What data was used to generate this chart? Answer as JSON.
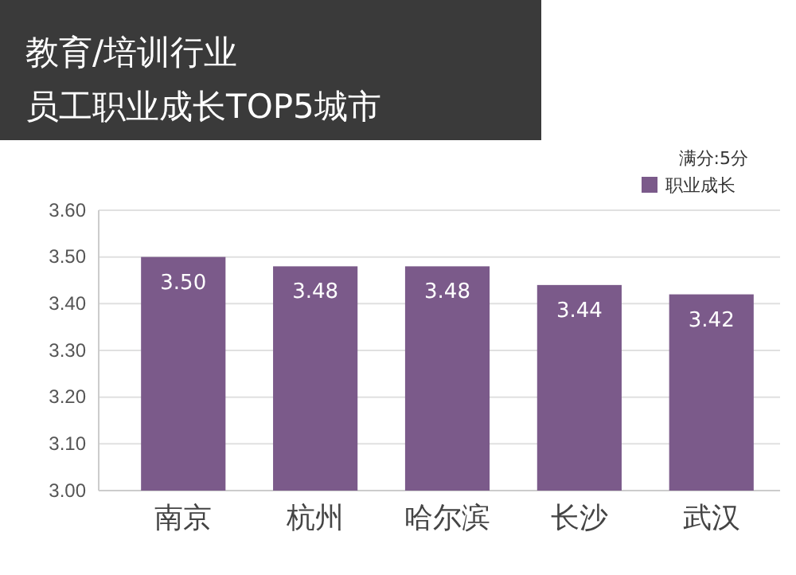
{
  "chart_data": {
    "type": "bar",
    "title": "教育/培训行业",
    "subtitle": "员工职业成长TOP5城市",
    "categories": [
      "南京",
      "杭州",
      "哈尔滨",
      "长沙",
      "武汉"
    ],
    "series": [
      {
        "name": "职业成长",
        "color": "#7b5a8a",
        "values": [
          3.5,
          3.48,
          3.48,
          3.44,
          3.42
        ],
        "value_labels": [
          "3.50",
          "3.48",
          "3.48",
          "3.44",
          "3.42"
        ]
      }
    ],
    "ylim": [
      3.0,
      3.6
    ],
    "yticks": [
      {
        "value": 3.0,
        "label": "3.00"
      },
      {
        "value": 3.1,
        "label": "3.10"
      },
      {
        "value": 3.2,
        "label": "3.20"
      },
      {
        "value": 3.3,
        "label": "3.30"
      },
      {
        "value": 3.4,
        "label": "3.40"
      },
      {
        "value": 3.5,
        "label": "3.50"
      },
      {
        "value": 3.6,
        "label": "3.60"
      }
    ],
    "grid": "y",
    "legend": "top right",
    "annotations": [
      "满分:5分"
    ]
  }
}
